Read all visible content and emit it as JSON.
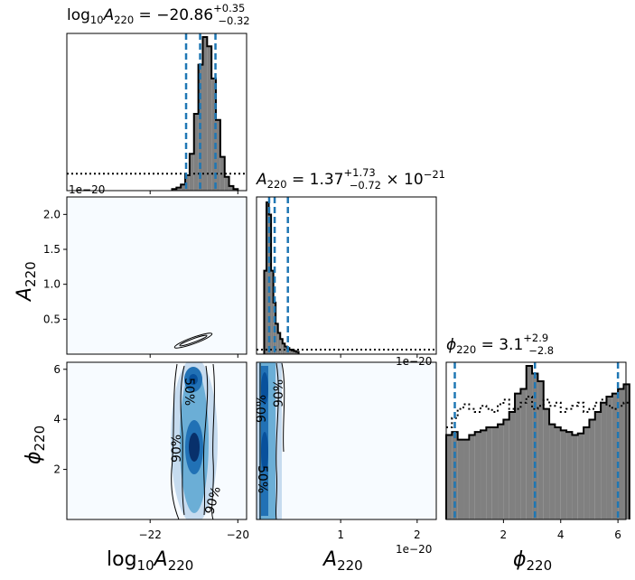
{
  "chart_data": [
    {
      "type": "histogram",
      "panel": "log10A220-marginal",
      "title_parts": [
        "log",
        "10",
        "A",
        "220",
        " = −20.86",
        "+0.35",
        "−0.32"
      ],
      "x_range": [
        -23.9,
        -19.8
      ],
      "quantiles": [
        -21.18,
        -20.86,
        -20.51
      ],
      "bins": {
        "start": -21.5,
        "step": 0.1,
        "values": [
          0.01,
          0.02,
          0.04,
          0.1,
          0.24,
          0.5,
          0.82,
          1.0,
          0.94,
          0.73,
          0.46,
          0.22,
          0.09,
          0.03,
          0.01
        ]
      },
      "prior_level": 0.11,
      "offset_text": "1e−20"
    },
    {
      "type": "histogram",
      "panel": "A220-marginal",
      "title_parts": [
        "A",
        "220",
        " = 1.37",
        "+1.73",
        "−0.72",
        " × 10",
        "−21"
      ],
      "x_range": [
        -0.1,
        2.25
      ],
      "quantiles": [
        0.065,
        0.137,
        0.31
      ],
      "bins": {
        "start": 0,
        "step": 0.03,
        "values": [
          0.55,
          1.0,
          0.92,
          0.55,
          0.34,
          0.2,
          0.14,
          0.1,
          0.07,
          0.05,
          0.04,
          0.03,
          0.025,
          0.02,
          0.015
        ]
      },
      "prior_level": 0.03,
      "offset_text": "1e−20"
    },
    {
      "type": "histogram",
      "panel": "phi220-marginal",
      "title_parts": [
        "ϕ",
        "220",
        " = 3.1",
        "+2.9",
        "−2.8"
      ],
      "x_range": [
        0,
        6.28
      ],
      "quantiles": [
        0.3,
        3.1,
        6.0
      ],
      "bins": {
        "start": 0,
        "step": 0.2,
        "values": [
          0.55,
          0.57,
          0.52,
          0.52,
          0.55,
          0.57,
          0.58,
          0.6,
          0.6,
          0.62,
          0.65,
          0.7,
          0.82,
          0.85,
          1.0,
          0.95,
          0.9,
          0.72,
          0.62,
          0.6,
          0.58,
          0.57,
          0.55,
          0.56,
          0.6,
          0.65,
          0.7,
          0.76,
          0.8,
          0.82,
          0.85,
          0.88
        ]
      },
      "prior": [
        0.6,
        0.66,
        0.72,
        0.75,
        0.72,
        0.7,
        0.74,
        0.72,
        0.7,
        0.75,
        0.78,
        0.72,
        0.72,
        0.76,
        0.8,
        0.72,
        0.74,
        0.78,
        0.74,
        0.76,
        0.7,
        0.72,
        0.74,
        0.76,
        0.7,
        0.72,
        0.76,
        0.78,
        0.74,
        0.72,
        0.74,
        0.76
      ]
    },
    {
      "type": "contour",
      "panel": "log10A220-vs-A220",
      "x_range": [
        -23.9,
        -19.8
      ],
      "y_range": [
        0,
        2.25
      ],
      "y_ticks": [
        0.5,
        1.0,
        1.5,
        2.0
      ],
      "y_tick_labels": [
        "0.5",
        "1.0",
        "1.5",
        "2.0"
      ],
      "ylabel_parts": [
        "A",
        "220"
      ]
    },
    {
      "type": "contour",
      "panel": "log10A220-vs-phi220",
      "x_range": [
        -23.9,
        -19.8
      ],
      "y_range": [
        0,
        6.28
      ],
      "x_ticks": [
        -22,
        -20
      ],
      "x_tick_labels": [
        "−22",
        "−20"
      ],
      "y_ticks": [
        2,
        4,
        6
      ],
      "y_tick_labels": [
        "2",
        "4",
        "6"
      ],
      "contour_labels": [
        "50%",
        "90%",
        "90%"
      ],
      "xlabel_parts": [
        "log",
        "10",
        "A",
        "220"
      ],
      "ylabel_parts": [
        "ϕ",
        "220"
      ]
    },
    {
      "type": "contour",
      "panel": "A220-vs-phi220",
      "x_range": [
        -0.1,
        2.25
      ],
      "y_range": [
        0,
        6.28
      ],
      "x_ticks": [
        1,
        2
      ],
      "x_tick_labels": [
        "1",
        "2"
      ],
      "contour_labels": [
        "90%",
        "90%",
        "50%"
      ],
      "offset_text": "1e−20",
      "xlabel_parts": [
        "A",
        "220"
      ]
    },
    {
      "type": "axis",
      "panel": "phi220-axis",
      "x_ticks": [
        2,
        4,
        6
      ],
      "x_tick_labels": [
        "2",
        "4",
        "6"
      ],
      "xlabel_parts": [
        "ϕ",
        "220"
      ]
    }
  ],
  "colors": {
    "hist_fill": "#808080",
    "quantile": "#1f77b4",
    "density_low": "#f7fbff",
    "density_high": "#08306b"
  }
}
